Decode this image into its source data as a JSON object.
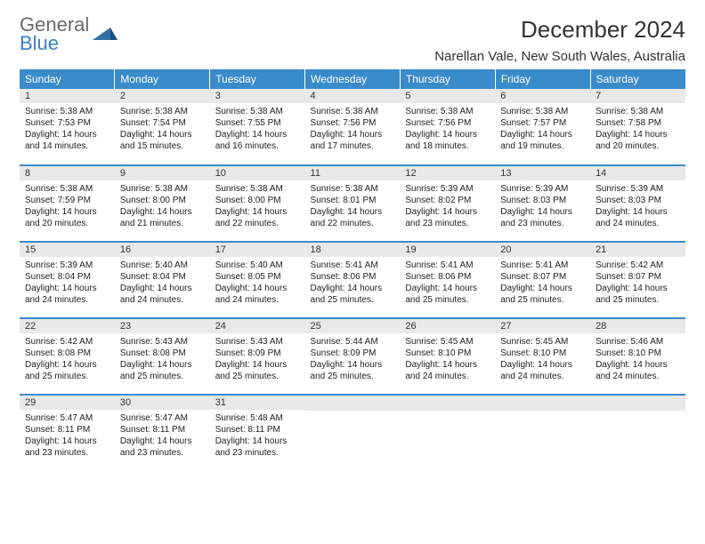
{
  "brand": {
    "top": "General",
    "bottom": "Blue"
  },
  "colors": {
    "header_bg": "#3a8bc9",
    "header_fg": "#ffffff",
    "row_divider": "#3a8bc9",
    "daynum_bg": "#e9e9e9",
    "text": "#222222",
    "brand_top": "#6a6a6a",
    "brand_bottom": "#3a7fbf"
  },
  "title": "December 2024",
  "location": "Narellan Vale, New South Wales, Australia",
  "weekdays": [
    "Sunday",
    "Monday",
    "Tuesday",
    "Wednesday",
    "Thursday",
    "Friday",
    "Saturday"
  ],
  "weeks": [
    [
      {
        "n": "1",
        "sunrise": "5:38 AM",
        "sunset": "7:53 PM",
        "daylight": "14 hours and 14 minutes."
      },
      {
        "n": "2",
        "sunrise": "5:38 AM",
        "sunset": "7:54 PM",
        "daylight": "14 hours and 15 minutes."
      },
      {
        "n": "3",
        "sunrise": "5:38 AM",
        "sunset": "7:55 PM",
        "daylight": "14 hours and 16 minutes."
      },
      {
        "n": "4",
        "sunrise": "5:38 AM",
        "sunset": "7:56 PM",
        "daylight": "14 hours and 17 minutes."
      },
      {
        "n": "5",
        "sunrise": "5:38 AM",
        "sunset": "7:56 PM",
        "daylight": "14 hours and 18 minutes."
      },
      {
        "n": "6",
        "sunrise": "5:38 AM",
        "sunset": "7:57 PM",
        "daylight": "14 hours and 19 minutes."
      },
      {
        "n": "7",
        "sunrise": "5:38 AM",
        "sunset": "7:58 PM",
        "daylight": "14 hours and 20 minutes."
      }
    ],
    [
      {
        "n": "8",
        "sunrise": "5:38 AM",
        "sunset": "7:59 PM",
        "daylight": "14 hours and 20 minutes."
      },
      {
        "n": "9",
        "sunrise": "5:38 AM",
        "sunset": "8:00 PM",
        "daylight": "14 hours and 21 minutes."
      },
      {
        "n": "10",
        "sunrise": "5:38 AM",
        "sunset": "8:00 PM",
        "daylight": "14 hours and 22 minutes."
      },
      {
        "n": "11",
        "sunrise": "5:38 AM",
        "sunset": "8:01 PM",
        "daylight": "14 hours and 22 minutes."
      },
      {
        "n": "12",
        "sunrise": "5:39 AM",
        "sunset": "8:02 PM",
        "daylight": "14 hours and 23 minutes."
      },
      {
        "n": "13",
        "sunrise": "5:39 AM",
        "sunset": "8:03 PM",
        "daylight": "14 hours and 23 minutes."
      },
      {
        "n": "14",
        "sunrise": "5:39 AM",
        "sunset": "8:03 PM",
        "daylight": "14 hours and 24 minutes."
      }
    ],
    [
      {
        "n": "15",
        "sunrise": "5:39 AM",
        "sunset": "8:04 PM",
        "daylight": "14 hours and 24 minutes."
      },
      {
        "n": "16",
        "sunrise": "5:40 AM",
        "sunset": "8:04 PM",
        "daylight": "14 hours and 24 minutes."
      },
      {
        "n": "17",
        "sunrise": "5:40 AM",
        "sunset": "8:05 PM",
        "daylight": "14 hours and 24 minutes."
      },
      {
        "n": "18",
        "sunrise": "5:41 AM",
        "sunset": "8:06 PM",
        "daylight": "14 hours and 25 minutes."
      },
      {
        "n": "19",
        "sunrise": "5:41 AM",
        "sunset": "8:06 PM",
        "daylight": "14 hours and 25 minutes."
      },
      {
        "n": "20",
        "sunrise": "5:41 AM",
        "sunset": "8:07 PM",
        "daylight": "14 hours and 25 minutes."
      },
      {
        "n": "21",
        "sunrise": "5:42 AM",
        "sunset": "8:07 PM",
        "daylight": "14 hours and 25 minutes."
      }
    ],
    [
      {
        "n": "22",
        "sunrise": "5:42 AM",
        "sunset": "8:08 PM",
        "daylight": "14 hours and 25 minutes."
      },
      {
        "n": "23",
        "sunrise": "5:43 AM",
        "sunset": "8:08 PM",
        "daylight": "14 hours and 25 minutes."
      },
      {
        "n": "24",
        "sunrise": "5:43 AM",
        "sunset": "8:09 PM",
        "daylight": "14 hours and 25 minutes."
      },
      {
        "n": "25",
        "sunrise": "5:44 AM",
        "sunset": "8:09 PM",
        "daylight": "14 hours and 25 minutes."
      },
      {
        "n": "26",
        "sunrise": "5:45 AM",
        "sunset": "8:10 PM",
        "daylight": "14 hours and 24 minutes."
      },
      {
        "n": "27",
        "sunrise": "5:45 AM",
        "sunset": "8:10 PM",
        "daylight": "14 hours and 24 minutes."
      },
      {
        "n": "28",
        "sunrise": "5:46 AM",
        "sunset": "8:10 PM",
        "daylight": "14 hours and 24 minutes."
      }
    ],
    [
      {
        "n": "29",
        "sunrise": "5:47 AM",
        "sunset": "8:11 PM",
        "daylight": "14 hours and 23 minutes."
      },
      {
        "n": "30",
        "sunrise": "5:47 AM",
        "sunset": "8:11 PM",
        "daylight": "14 hours and 23 minutes."
      },
      {
        "n": "31",
        "sunrise": "5:48 AM",
        "sunset": "8:11 PM",
        "daylight": "14 hours and 23 minutes."
      },
      null,
      null,
      null,
      null
    ]
  ],
  "labels": {
    "sunrise": "Sunrise:",
    "sunset": "Sunset:",
    "daylight": "Daylight:"
  }
}
